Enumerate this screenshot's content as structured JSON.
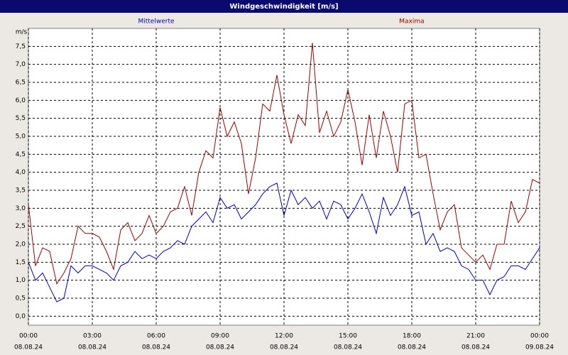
{
  "chart_data": {
    "type": "line",
    "title": "Windgeschwindigkeit [m/s]",
    "y_unit": "m/s",
    "x": [
      0,
      20,
      40,
      60,
      80,
      100,
      120,
      140,
      160,
      180,
      200,
      220,
      240,
      260,
      280,
      300,
      320,
      340,
      360,
      380,
      400,
      420,
      440,
      460,
      480,
      500,
      520,
      540,
      560,
      580,
      600,
      620,
      640,
      660,
      680,
      700,
      720,
      740,
      760,
      780,
      800,
      820,
      840,
      860,
      880,
      900,
      920,
      940,
      960,
      980,
      1000,
      1020,
      1040,
      1060,
      1080,
      1100,
      1120,
      1140,
      1160,
      1180,
      1200,
      1220,
      1240,
      1260,
      1280,
      1300,
      1320,
      1340,
      1360,
      1380,
      1400,
      1420,
      1440
    ],
    "series": [
      {
        "name": "Mittelwerte",
        "color": "#0000c0",
        "values": [
          1.5,
          1.0,
          1.2,
          0.8,
          0.4,
          0.5,
          1.4,
          1.2,
          1.4,
          1.4,
          1.3,
          1.2,
          1.0,
          1.4,
          1.5,
          1.8,
          1.6,
          1.7,
          1.6,
          1.8,
          1.9,
          2.1,
          2.0,
          2.5,
          2.7,
          2.9,
          2.6,
          3.3,
          3.0,
          3.1,
          2.7,
          2.9,
          3.1,
          3.4,
          3.6,
          3.7,
          2.8,
          3.5,
          3.1,
          3.3,
          3.0,
          3.2,
          2.7,
          3.2,
          3.1,
          2.7,
          3.0,
          3.4,
          2.9,
          2.3,
          3.3,
          2.8,
          3.1,
          3.6,
          2.8,
          2.9,
          2.0,
          2.3,
          1.8,
          1.9,
          1.8,
          1.4,
          1.3,
          1.0,
          1.0,
          0.6,
          1.0,
          1.1,
          1.4,
          1.4,
          1.3,
          1.6,
          1.9
        ]
      },
      {
        "name": "Maxima",
        "color": "#a00000",
        "values": [
          3.1,
          1.4,
          1.9,
          1.8,
          0.9,
          1.2,
          1.6,
          2.5,
          2.3,
          2.3,
          2.2,
          1.8,
          1.3,
          2.4,
          2.6,
          2.1,
          2.3,
          2.8,
          2.3,
          2.5,
          2.9,
          3.0,
          3.6,
          2.8,
          4.0,
          4.6,
          4.4,
          5.8,
          5.0,
          5.4,
          4.8,
          3.4,
          4.4,
          5.9,
          5.7,
          6.7,
          5.6,
          4.8,
          5.6,
          5.3,
          7.6,
          5.1,
          5.7,
          5.0,
          5.4,
          6.3,
          5.4,
          4.2,
          5.6,
          4.4,
          5.7,
          5.0,
          4.0,
          5.9,
          6.0,
          4.4,
          4.5,
          3.4,
          2.4,
          2.9,
          3.1,
          1.9,
          1.7,
          1.5,
          1.7,
          1.3,
          2.0,
          2.0,
          3.2,
          2.6,
          2.9,
          3.8,
          3.7
        ]
      }
    ],
    "xlim": [
      0,
      1440
    ],
    "xticks": [
      {
        "value": 0,
        "label": "00:00"
      },
      {
        "value": 180,
        "label": "03:00"
      },
      {
        "value": 360,
        "label": "06:00"
      },
      {
        "value": 540,
        "label": "09:00"
      },
      {
        "value": 720,
        "label": "12:00"
      },
      {
        "value": 900,
        "label": "15:00"
      },
      {
        "value": 1080,
        "label": "18:00"
      },
      {
        "value": 1260,
        "label": "21:00"
      },
      {
        "value": 1440,
        "label": "00:00"
      }
    ],
    "xtick_dates": [
      "08.08.24",
      "08.08.24",
      "08.08.24",
      "08.08.24",
      "08.08.24",
      "08.08.24",
      "08.08.24",
      "08.08.24",
      "09.08.24"
    ],
    "ylim": [
      -0.25,
      8.0
    ],
    "yticks": [
      {
        "value": 0,
        "label": "0,0"
      },
      {
        "value": 0.5,
        "label": "0,5"
      },
      {
        "value": 1,
        "label": "1,0"
      },
      {
        "value": 1.5,
        "label": "1,5"
      },
      {
        "value": 2,
        "label": "2,0"
      },
      {
        "value": 2.5,
        "label": "2,5"
      },
      {
        "value": 3,
        "label": "3,0"
      },
      {
        "value": 3.5,
        "label": "3,5"
      },
      {
        "value": 4,
        "label": "4,0"
      },
      {
        "value": 4.5,
        "label": "4,5"
      },
      {
        "value": 5,
        "label": "5,0"
      },
      {
        "value": 5.5,
        "label": "5,5"
      },
      {
        "value": 6,
        "label": "6,0"
      },
      {
        "value": 6.5,
        "label": "6,5"
      },
      {
        "value": 7,
        "label": "7,0"
      },
      {
        "value": 7.5,
        "label": "7,5"
      }
    ],
    "grid": true
  }
}
